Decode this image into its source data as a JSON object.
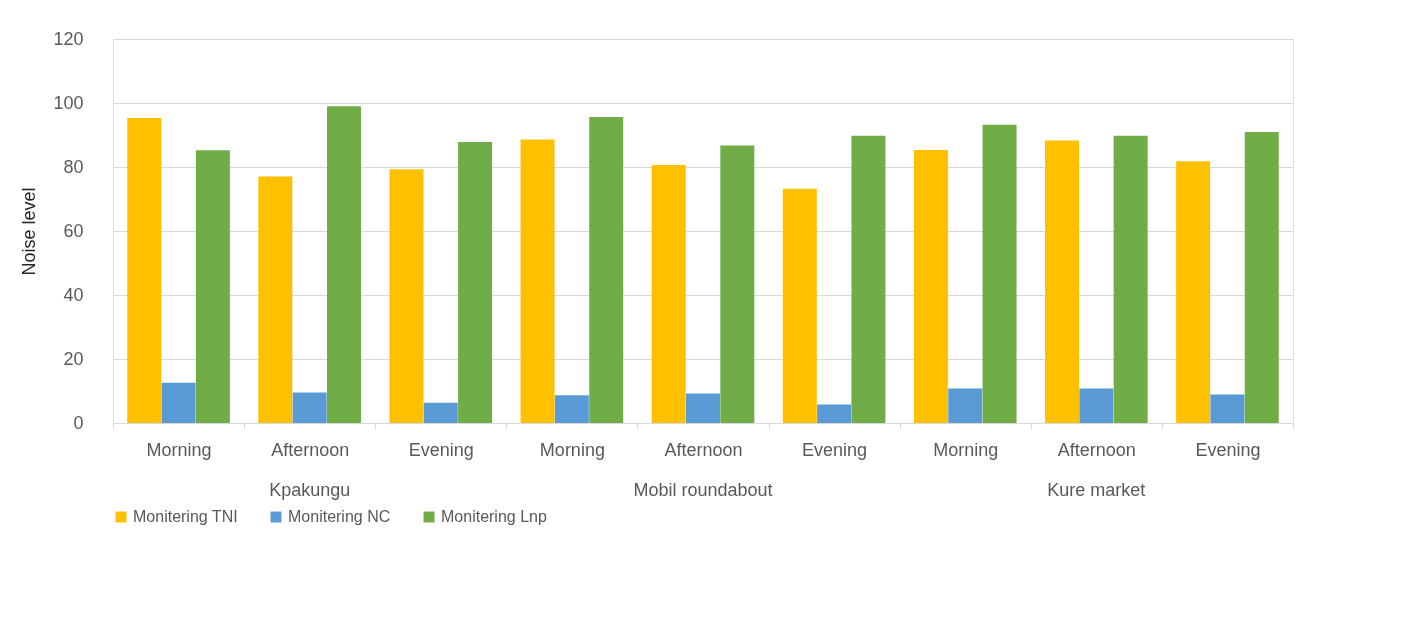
{
  "chart_data": {
    "type": "bar",
    "ylabel": "Noise level",
    "categories": [
      "Morning",
      "Afternoon",
      "Evening",
      "Morning",
      "Afternoon",
      "Evening",
      "Morning",
      "Afternoon",
      "Evening"
    ],
    "series": [
      {
        "name": "Monitering TNI",
        "color": "#ffc000",
        "values": [
          95.3,
          77,
          79.3,
          88.6,
          80.6,
          73.2,
          85.3,
          88.3,
          81.8
        ]
      },
      {
        "name": "Monitering NC",
        "color": "#5b9bd5",
        "values": [
          12.6,
          9.5,
          6.3,
          8.7,
          9.2,
          5.8,
          10.8,
          10.8,
          8.9
        ]
      },
      {
        "name": "Monitering Lnp",
        "color": "#70ad47",
        "values": [
          85.2,
          99,
          87.8,
          95.6,
          86.7,
          89.8,
          93.2,
          89.8,
          90.9
        ]
      }
    ],
    "annotations": [
      "Kpakungu",
      "Mobil roundabout",
      "Kure market"
    ],
    "ylim": [
      0,
      120
    ],
    "yticks": [
      0,
      20,
      40,
      60,
      80,
      100,
      120
    ],
    "grid": "y",
    "legend": "bottom"
  }
}
